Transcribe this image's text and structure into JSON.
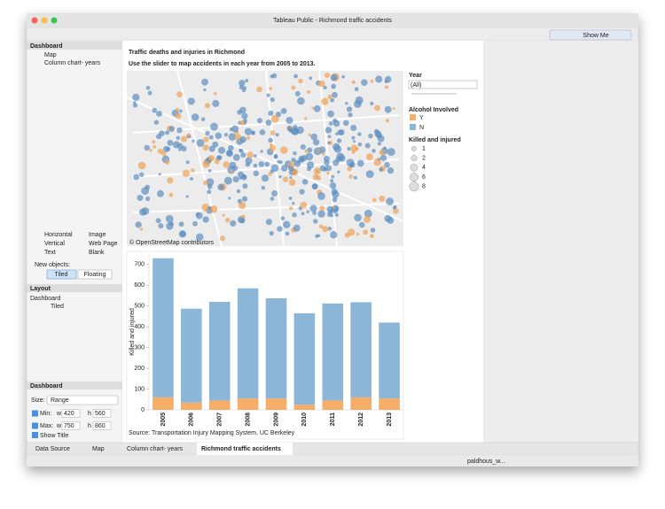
{
  "window": {
    "title": "Tableau Public - Richmond traffic accidents",
    "show_me": "Show Me"
  },
  "sidebar": {
    "dashboard_header": "Dashboard",
    "sheets": [
      "Map",
      "Column chart- years"
    ],
    "objects": [
      "Horizontal",
      "Image",
      "Vertical",
      "Web Page",
      "Text",
      "Blank"
    ],
    "new_objects": "New objects:",
    "tiled": "Tiled",
    "floating": "Floating",
    "layout_header": "Layout",
    "layout_root": "Dashboard",
    "layout_child": "Tiled",
    "size_header": "Dashboard",
    "size_label": "Size:",
    "size_value": "Range",
    "min_label": "Min:",
    "min_w": 420,
    "min_h": 560,
    "max_label": "Max:",
    "max_w": 750,
    "max_h": 860,
    "w": "w",
    "h": "h",
    "show_title": "Show Title"
  },
  "dashboard": {
    "title": "Traffic deaths and injuries in Richmond",
    "subtitle": "Use the slider to map accidents in each year from 2005 to 2013.",
    "map_credit": "© OpenStreetMap contributors",
    "year_label": "Year",
    "year_value": "(All)",
    "alcohol_label": "Alcohol Involved",
    "size_label": "Killed and injured",
    "size_items": [
      1,
      2,
      4,
      6,
      8
    ],
    "source": "Source: Transportation Injury Mapping System, UC Berkeley"
  },
  "chart_data": {
    "type": "bar",
    "stacked": true,
    "y_label": "Killed and injured",
    "categories": [
      "2005",
      "2006",
      "2007",
      "2008",
      "2009",
      "2010",
      "2011",
      "2012",
      "2013"
    ],
    "series": [
      {
        "name": "Y",
        "color": "#f5ad68",
        "values": [
          60,
          35,
          45,
          55,
          55,
          25,
          45,
          60,
          55
        ]
      },
      {
        "name": "N",
        "color": "#8cb6d8",
        "values": [
          670,
          452,
          475,
          530,
          482,
          440,
          467,
          458,
          365
        ]
      }
    ],
    "ylim": [
      0,
      750
    ],
    "yticks": [
      0,
      100,
      200,
      300,
      400,
      500,
      600,
      700
    ]
  },
  "tabs": [
    "Data Source",
    "Map",
    "Column chart- years",
    "Richmond traffic accidents"
  ],
  "status": {
    "user": "paldhous_w..."
  }
}
